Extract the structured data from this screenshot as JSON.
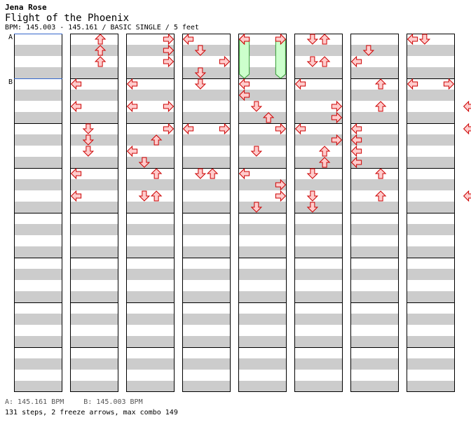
{
  "song": {
    "artist": "Jena Rose",
    "title": "Flight of the Phoenix",
    "info": "BPM: 145.003 - 145.161 / BASIC SINGLE / 5 feet"
  },
  "markers": [
    "A",
    "B"
  ],
  "legend": {
    "a": "A: 145.161 BPM",
    "b": "B: 145.003 BPM"
  },
  "stats": "131 steps, 2 freeze arrows, max combo 149",
  "colors": {
    "arrow_fill": "#ffcccc",
    "arrow_stroke": "#cc0000",
    "freeze_fill": "#ccffcc",
    "freeze_stroke": "#339933",
    "band": "#cccccc",
    "bpm_line": "#3366cc"
  },
  "chart_data": {
    "type": "table",
    "description_units": "columns are 4-measure blocks; each measure is 4 beats; beat position 0-16 within a column; lanes L,D,U,R",
    "notes": [
      {
        "c": 1,
        "b": 0.5,
        "l": "U"
      },
      {
        "c": 1,
        "b": 1.5,
        "l": "U"
      },
      {
        "c": 1,
        "b": 2.5,
        "l": "U"
      },
      {
        "c": 1,
        "b": 4.5,
        "l": "L"
      },
      {
        "c": 1,
        "b": 6.5,
        "l": "L"
      },
      {
        "c": 1,
        "b": 8.5,
        "l": "D"
      },
      {
        "c": 1,
        "b": 9.5,
        "l": "D"
      },
      {
        "c": 1,
        "b": 10.5,
        "l": "D"
      },
      {
        "c": 1,
        "b": 12.5,
        "l": "L"
      },
      {
        "c": 1,
        "b": 14.5,
        "l": "L"
      },
      {
        "c": 2,
        "b": 0.5,
        "l": "R"
      },
      {
        "c": 2,
        "b": 1.5,
        "l": "R"
      },
      {
        "c": 2,
        "b": 2.5,
        "l": "R"
      },
      {
        "c": 2,
        "b": 4.5,
        "l": "L"
      },
      {
        "c": 2,
        "b": 6.5,
        "l": "L"
      },
      {
        "c": 2,
        "b": 6.5,
        "l": "R"
      },
      {
        "c": 2,
        "b": 8.5,
        "l": "R"
      },
      {
        "c": 2,
        "b": 9.5,
        "l": "U"
      },
      {
        "c": 2,
        "b": 10.5,
        "l": "L"
      },
      {
        "c": 2,
        "b": 11.5,
        "l": "D"
      },
      {
        "c": 2,
        "b": 12.5,
        "l": "U"
      },
      {
        "c": 2,
        "b": 14.5,
        "l": "D"
      },
      {
        "c": 2,
        "b": 14.5,
        "l": "U"
      },
      {
        "c": 3,
        "b": 0.5,
        "l": "L"
      },
      {
        "c": 3,
        "b": 1.5,
        "l": "D"
      },
      {
        "c": 3,
        "b": 2.5,
        "l": "R"
      },
      {
        "c": 3,
        "b": 3.5,
        "l": "D"
      },
      {
        "c": 3,
        "b": 4.5,
        "l": "D"
      },
      {
        "c": 3,
        "b": 8.5,
        "l": "L"
      },
      {
        "c": 3,
        "b": 8.5,
        "l": "R"
      },
      {
        "c": 3,
        "b": 12.5,
        "l": "D"
      },
      {
        "c": 3,
        "b": 12.5,
        "l": "U"
      },
      {
        "c": 4,
        "b": 0.5,
        "l": "L"
      },
      {
        "c": 4,
        "b": 4.5,
        "l": "L"
      },
      {
        "c": 4,
        "b": 5.5,
        "l": "L"
      },
      {
        "c": 4,
        "b": 6.5,
        "l": "D"
      },
      {
        "c": 4,
        "b": 7.5,
        "l": "U"
      },
      {
        "c": 4,
        "b": 8.5,
        "l": "R"
      },
      {
        "c": 4,
        "b": 10.5,
        "l": "D"
      },
      {
        "c": 4,
        "b": 12.5,
        "l": "L"
      },
      {
        "c": 4,
        "b": 13.5,
        "l": "R"
      },
      {
        "c": 4,
        "b": 14.5,
        "l": "R"
      },
      {
        "c": 4,
        "b": 15.5,
        "l": "D"
      },
      {
        "c": 5,
        "b": 0.5,
        "l": "D"
      },
      {
        "c": 5,
        "b": 0.5,
        "l": "U"
      },
      {
        "c": 5,
        "b": 2.5,
        "l": "D"
      },
      {
        "c": 5,
        "b": 2.5,
        "l": "U"
      },
      {
        "c": 5,
        "b": 4.5,
        "l": "L"
      },
      {
        "c": 5,
        "b": 6.5,
        "l": "R"
      },
      {
        "c": 5,
        "b": 7.5,
        "l": "R"
      },
      {
        "c": 5,
        "b": 8.5,
        "l": "L"
      },
      {
        "c": 5,
        "b": 9.5,
        "l": "R"
      },
      {
        "c": 5,
        "b": 10.5,
        "l": "U"
      },
      {
        "c": 5,
        "b": 11.5,
        "l": "U"
      },
      {
        "c": 5,
        "b": 12.5,
        "l": "D"
      },
      {
        "c": 5,
        "b": 14.5,
        "l": "D"
      },
      {
        "c": 5,
        "b": 15.5,
        "l": "D"
      },
      {
        "c": 6,
        "b": 1.5,
        "l": "D"
      },
      {
        "c": 6,
        "b": 2.5,
        "l": "L"
      },
      {
        "c": 6,
        "b": 4.5,
        "l": "U"
      },
      {
        "c": 6,
        "b": 6.5,
        "l": "U"
      },
      {
        "c": 6,
        "b": 8.5,
        "l": "L"
      },
      {
        "c": 6,
        "b": 9.5,
        "l": "L"
      },
      {
        "c": 6,
        "b": 10.5,
        "l": "L"
      },
      {
        "c": 6,
        "b": 11.5,
        "l": "L"
      },
      {
        "c": 6,
        "b": 12.5,
        "l": "U"
      },
      {
        "c": 6,
        "b": 14.5,
        "l": "U"
      },
      {
        "c": 7,
        "b": 0.5,
        "l": "L"
      },
      {
        "c": 7,
        "b": 0.5,
        "l": "D"
      },
      {
        "c": 7,
        "b": 4.5,
        "l": "L"
      },
      {
        "c": 7,
        "b": 4.5,
        "l": "R"
      },
      {
        "c": 8,
        "b": 4.5,
        "l": "R"
      },
      {
        "c": 8,
        "b": 6.5,
        "l": "L"
      },
      {
        "c": 8,
        "b": 8.5,
        "l": "L"
      },
      {
        "c": 8,
        "b": 9.5,
        "l": "U"
      },
      {
        "c": 8,
        "b": 10.5,
        "l": "R"
      },
      {
        "c": 8,
        "b": 11.5,
        "l": "R"
      },
      {
        "c": 8,
        "b": 12.5,
        "l": "D"
      },
      {
        "c": 8,
        "b": 14.5,
        "l": "L"
      },
      {
        "c": 8,
        "b": 16.5,
        "l": "R"
      },
      {
        "c": 8,
        "b": 19,
        "l": "D"
      },
      {
        "c": 9,
        "b": 0.5,
        "l": "L"
      },
      {
        "c": 9,
        "b": 1.5,
        "l": "L"
      },
      {
        "c": 9,
        "b": 2.5,
        "l": "D"
      },
      {
        "c": 9,
        "b": 3.5,
        "l": "R"
      },
      {
        "c": 9,
        "b": 4.5,
        "l": "L"
      },
      {
        "c": 9,
        "b": 5.5,
        "l": "U"
      },
      {
        "c": 9,
        "b": 6.5,
        "l": "R"
      },
      {
        "c": 9,
        "b": 8.5,
        "l": "D"
      },
      {
        "c": 9,
        "b": 10.5,
        "l": "D"
      },
      {
        "c": 9,
        "b": 11.5,
        "l": "D"
      },
      {
        "c": 9,
        "b": 12.5,
        "l": "D"
      },
      {
        "c": 9,
        "b": 14.5,
        "l": "D"
      },
      {
        "c": 9,
        "b": 15.5,
        "l": "D"
      }
    ],
    "freezes": [
      {
        "c": 4,
        "lane": "L",
        "start": 0.5,
        "end": 4
      },
      {
        "c": 4,
        "lane": "R",
        "start": 0.5,
        "end": 4
      }
    ]
  }
}
